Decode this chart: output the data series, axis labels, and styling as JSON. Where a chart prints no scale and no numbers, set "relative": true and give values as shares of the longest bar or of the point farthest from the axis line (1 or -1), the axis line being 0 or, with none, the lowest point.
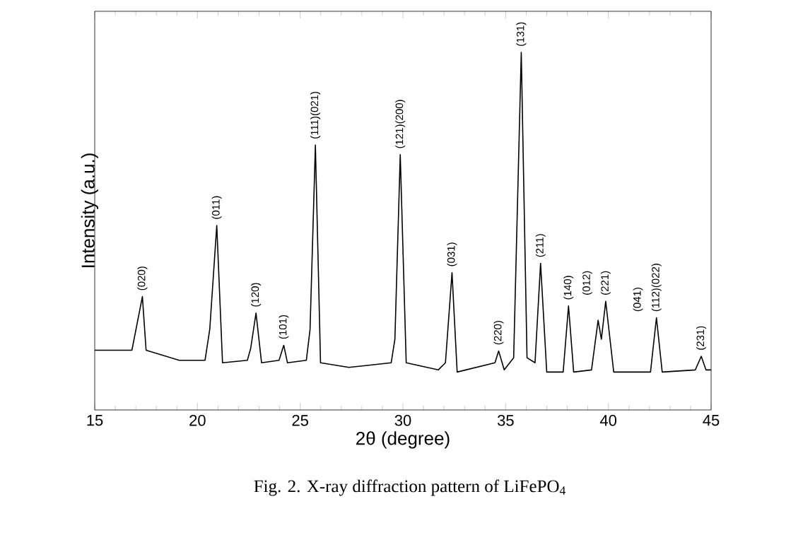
{
  "chart_data": {
    "type": "line",
    "relative": true,
    "xlabel": "2θ  (degree)",
    "ylabel": "Intensity (a.u.)",
    "xlim": [
      15,
      45
    ],
    "xticks": [
      15,
      20,
      25,
      30,
      35,
      40,
      45
    ],
    "color": "#000000",
    "x": [
      15,
      16.81,
      17.32,
      17.5,
      19.11,
      20.37,
      20.6,
      20.94,
      21.22,
      22.43,
      22.59,
      22.85,
      23.12,
      23.97,
      24.2,
      24.38,
      25.3,
      25.48,
      25.74,
      25.99,
      27.37,
      29.43,
      29.61,
      29.87,
      30.16,
      31.72,
      32.07,
      32.39,
      32.64,
      34.48,
      34.66,
      34.93,
      35.39,
      35.76,
      36.04,
      36.43,
      36.7,
      37.0,
      37.8,
      38.06,
      38.31,
      39.18,
      39.5,
      39.66,
      39.87,
      40.26,
      42.05,
      42.34,
      42.62,
      44.23,
      44.52,
      44.75,
      45
    ],
    "values": [
      0.167,
      0.167,
      0.317,
      0.167,
      0.139,
      0.139,
      0.226,
      0.516,
      0.132,
      0.139,
      0.172,
      0.271,
      0.132,
      0.139,
      0.181,
      0.132,
      0.139,
      0.225,
      0.741,
      0.132,
      0.119,
      0.132,
      0.198,
      0.714,
      0.132,
      0.112,
      0.132,
      0.384,
      0.106,
      0.132,
      0.165,
      0.112,
      0.146,
      1,
      0.146,
      0.132,
      0.41,
      0.106,
      0.106,
      0.291,
      0.106,
      0.112,
      0.251,
      0.198,
      0.304,
      0.106,
      0.106,
      0.258,
      0.106,
      0.112,
      0.15,
      0.112,
      0.112
    ],
    "annotations": [
      {
        "text": "(020)",
        "x": 17.32,
        "y": 0.317
      },
      {
        "text": "(011)",
        "x": 20.94,
        "y": 0.516
      },
      {
        "text": "(120)",
        "x": 22.85,
        "y": 0.271
      },
      {
        "text": "(101)",
        "x": 24.2,
        "y": 0.181
      },
      {
        "text": "(111)(021)",
        "x": 25.74,
        "y": 0.741
      },
      {
        "text": "(121)(200)",
        "x": 29.87,
        "y": 0.714
      },
      {
        "text": "(031)",
        "x": 32.39,
        "y": 0.384
      },
      {
        "text": "(220)",
        "x": 34.66,
        "y": 0.165
      },
      {
        "text": "(131)",
        "x": 35.76,
        "y": 1
      },
      {
        "text": "(211)",
        "x": 36.7,
        "y": 0.41
      },
      {
        "text": "(140)",
        "x": 38.06,
        "y": 0.291
      },
      "(012)",
      {
        "text": "(221)",
        "x": 39.87,
        "y": 0.304
      },
      "(041)",
      {
        "text": "(112)(022)",
        "x": 42.34,
        "y": 0.258
      },
      {
        "text": "(231)",
        "x": 44.52,
        "y": 0.15
      },
      "Fig. 2.  X-ray diffraction pattern of LiFePO$_{4}$"
    ]
  }
}
